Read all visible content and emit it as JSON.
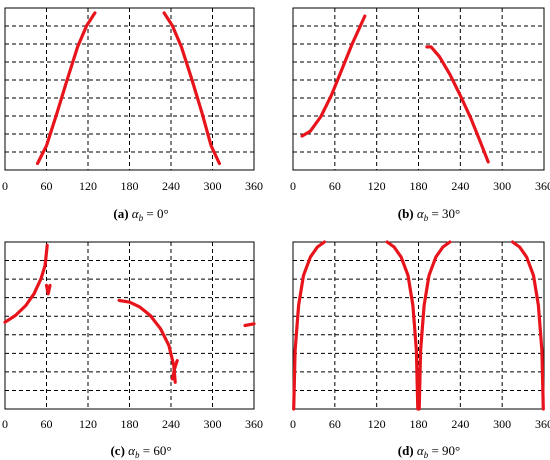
{
  "x_ticks": [
    "0",
    "60",
    "120",
    "180",
    "240",
    "300",
    "360"
  ],
  "chart_data": [
    {
      "type": "line",
      "caption_letter": "(a)",
      "caption_alpha": "α",
      "caption_sub": "b",
      "caption_value": " = 0°",
      "xlim": [
        0,
        360
      ],
      "xticks": [
        0,
        60,
        120,
        180,
        240,
        300,
        360
      ],
      "grid": true,
      "line_color": "#e8141b",
      "curves": [
        {
          "x": [
            47,
            60,
            75,
            90,
            105,
            118,
            130
          ],
          "y": [
            0.04,
            0.15,
            0.35,
            0.56,
            0.76,
            0.89,
            0.97
          ]
        },
        {
          "x": [
            230,
            242,
            255,
            270,
            285,
            298,
            310
          ],
          "y": [
            0.97,
            0.89,
            0.76,
            0.56,
            0.35,
            0.15,
            0.04
          ]
        }
      ]
    },
    {
      "type": "line",
      "caption_letter": "(b)",
      "caption_alpha": "α",
      "caption_sub": "b",
      "caption_value": " = 30°",
      "xlim": [
        0,
        360
      ],
      "xticks": [
        0,
        60,
        120,
        180,
        240,
        300,
        360
      ],
      "grid": true,
      "line_color": "#e8141b",
      "curves": [
        {
          "x": [
            13,
            25,
            40,
            55,
            70,
            85,
            103
          ],
          "y": [
            0.21,
            0.24,
            0.33,
            0.46,
            0.62,
            0.78,
            0.95
          ]
        },
        {
          "x": [
            192,
            198,
            210,
            225,
            240,
            255,
            268,
            280
          ],
          "y": [
            0.76,
            0.76,
            0.7,
            0.59,
            0.46,
            0.32,
            0.18,
            0.05
          ]
        }
      ]
    },
    {
      "type": "line",
      "caption_letter": "(c)",
      "caption_alpha": "α",
      "caption_sub": "b",
      "caption_value": " = 60°",
      "xlim": [
        0,
        360
      ],
      "xticks": [
        0,
        60,
        120,
        180,
        240,
        300,
        360
      ],
      "grid": true,
      "line_color": "#e8141b",
      "curves": [
        {
          "x": [
            0,
            15,
            30,
            42,
            52,
            58,
            61
          ],
          "y": [
            0.52,
            0.56,
            0.62,
            0.69,
            0.78,
            0.86,
            0.98
          ]
        },
        {
          "x": [
            60,
            62.5,
            65
          ],
          "y": [
            0.74,
            0.69,
            0.74
          ]
        },
        {
          "x": [
            165,
            180,
            195,
            210,
            225,
            237,
            244,
            246
          ],
          "y": [
            0.65,
            0.64,
            0.61,
            0.56,
            0.48,
            0.38,
            0.26,
            0.16
          ]
        },
        {
          "x": [
            242,
            245,
            249
          ],
          "y": [
            0.18,
            0.24,
            0.29
          ]
        },
        {
          "x": [
            347,
            360
          ],
          "y": [
            0.5,
            0.51
          ]
        }
      ]
    },
    {
      "type": "line",
      "caption_letter": "(d)",
      "caption_alpha": "α",
      "caption_sub": "b",
      "caption_value": " = 90°",
      "xlim": [
        0,
        360
      ],
      "xticks": [
        0,
        60,
        120,
        180,
        240,
        300,
        360
      ],
      "grid": true,
      "line_color": "#e8141b",
      "curves": [
        {
          "x": [
            1,
            3,
            8,
            15,
            25,
            35,
            45
          ],
          "y": [
            0.0,
            0.35,
            0.62,
            0.8,
            0.91,
            0.97,
            1.0
          ]
        },
        {
          "x": [
            135,
            145,
            155,
            165,
            172,
            177,
            179
          ],
          "y": [
            1.0,
            0.97,
            0.91,
            0.8,
            0.62,
            0.35,
            0.0
          ]
        },
        {
          "x": [
            181,
            183,
            188,
            195,
            205,
            215,
            225
          ],
          "y": [
            0.0,
            0.35,
            0.62,
            0.8,
            0.91,
            0.97,
            1.0
          ]
        },
        {
          "x": [
            315,
            325,
            335,
            345,
            352,
            357,
            359
          ],
          "y": [
            1.0,
            0.97,
            0.91,
            0.8,
            0.62,
            0.35,
            0.0
          ]
        }
      ]
    }
  ]
}
